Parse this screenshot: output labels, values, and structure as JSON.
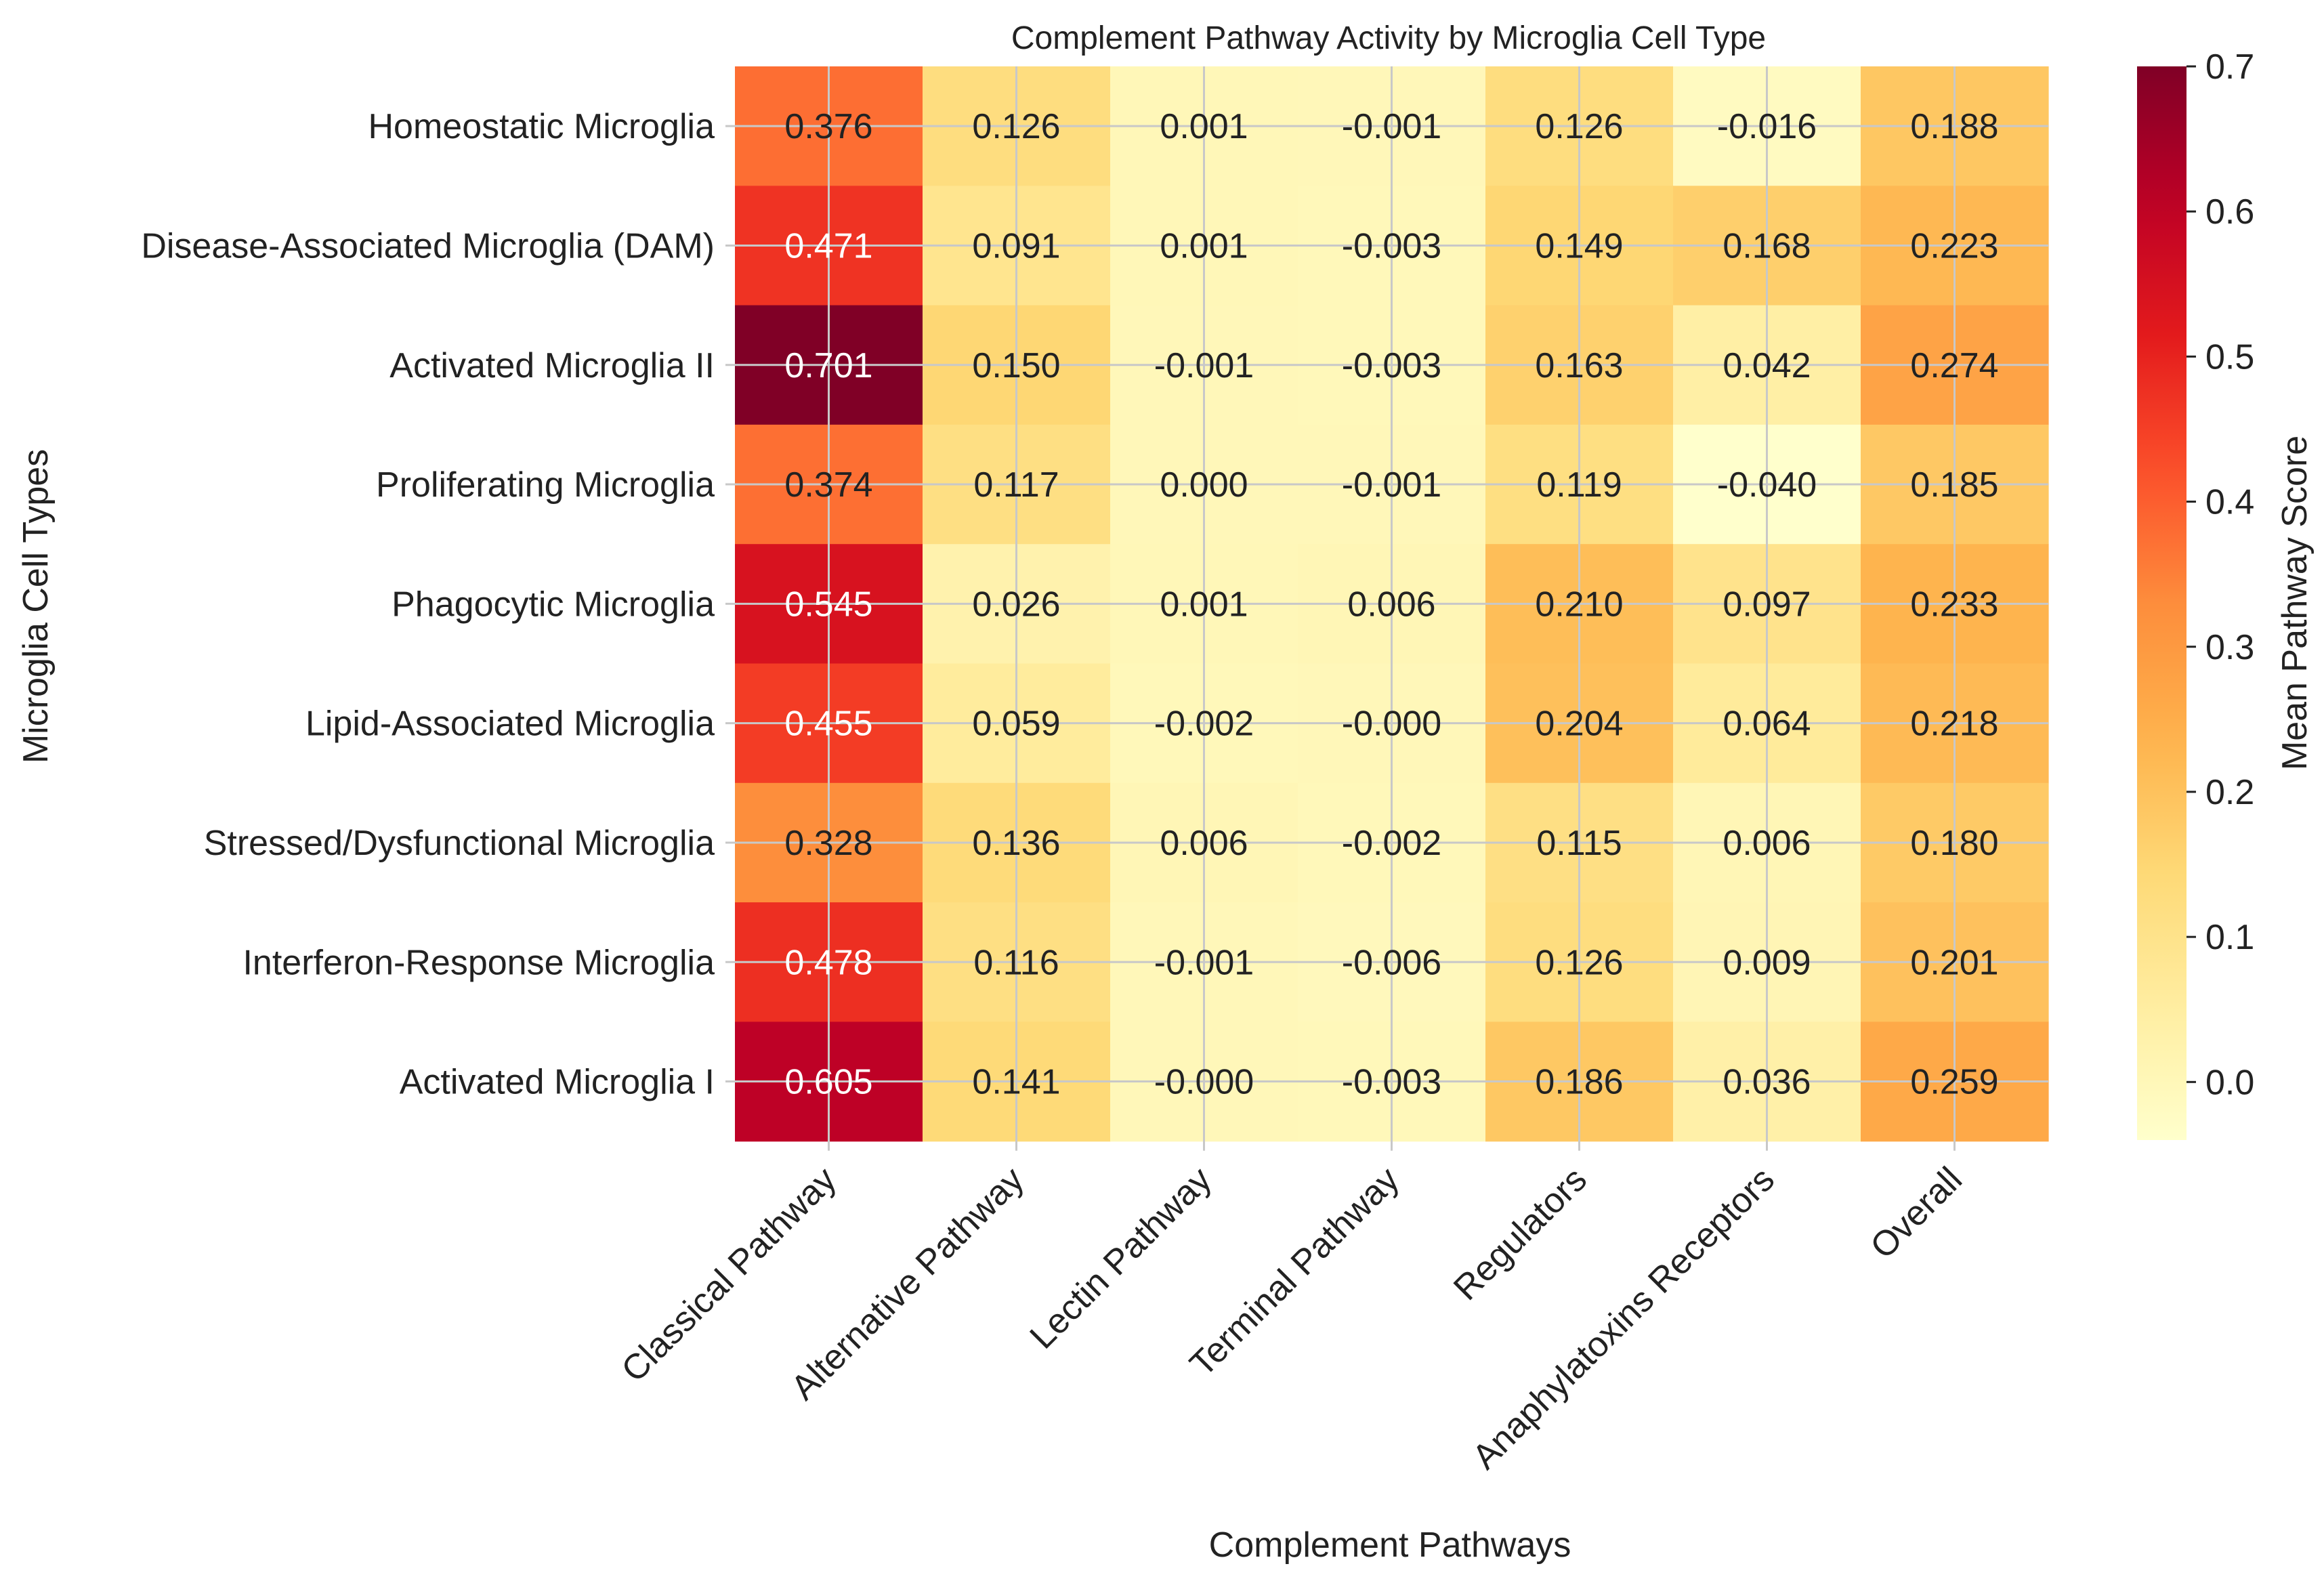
{
  "chart_data": {
    "type": "heatmap",
    "title": "Complement Pathway Activity by Microglia Cell Type",
    "xlabel": "Complement Pathways",
    "ylabel": "Microglia Cell Types",
    "colorbar_label": "Mean Pathway Score",
    "colormap": "YlOrRd",
    "color_range": [
      -0.04,
      0.7
    ],
    "colorbar_ticks": [
      "0.0",
      "0.1",
      "0.2",
      "0.3",
      "0.4",
      "0.5",
      "0.6",
      "0.7"
    ],
    "grid": true,
    "columns": [
      "Classical Pathway",
      "Alternative Pathway",
      "Lectin Pathway",
      "Terminal Pathway",
      "Regulators",
      "Anaphylatoxins Receptors",
      "Overall"
    ],
    "rows": [
      "Homeostatic Microglia",
      "Disease-Associated Microglia (DAM)",
      "Activated Microglia II",
      "Proliferating Microglia",
      "Phagocytic Microglia",
      "Lipid-Associated Microglia",
      "Stressed/Dysfunctional Microglia",
      "Interferon-Response Microglia",
      "Activated Microglia I"
    ],
    "labels": [
      [
        "0.376",
        "0.126",
        "0.001",
        "-0.001",
        "0.126",
        "-0.016",
        "0.188"
      ],
      [
        "0.471",
        "0.091",
        "0.001",
        "-0.003",
        "0.149",
        "0.168",
        "0.223"
      ],
      [
        "0.701",
        "0.150",
        "-0.001",
        "-0.003",
        "0.163",
        "0.042",
        "0.274"
      ],
      [
        "0.374",
        "0.117",
        "0.000",
        "-0.001",
        "0.119",
        "-0.040",
        "0.185"
      ],
      [
        "0.545",
        "0.026",
        "0.001",
        "0.006",
        "0.210",
        "0.097",
        "0.233"
      ],
      [
        "0.455",
        "0.059",
        "-0.002",
        "-0.000",
        "0.204",
        "0.064",
        "0.218"
      ],
      [
        "0.328",
        "0.136",
        "0.006",
        "-0.002",
        "0.115",
        "0.006",
        "0.180"
      ],
      [
        "0.478",
        "0.116",
        "-0.001",
        "-0.006",
        "0.126",
        "0.009",
        "0.201"
      ],
      [
        "0.605",
        "0.141",
        "-0.000",
        "-0.003",
        "0.186",
        "0.036",
        "0.259"
      ]
    ]
  }
}
